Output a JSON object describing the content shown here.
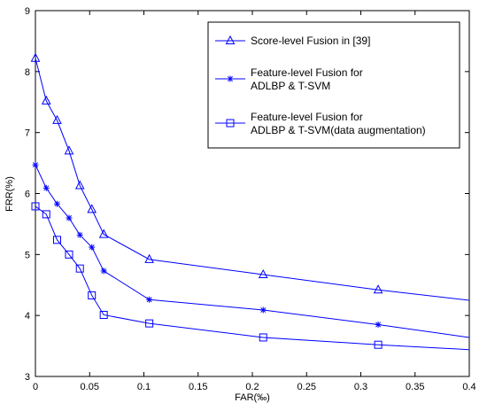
{
  "chart_data": {
    "type": "line",
    "xlabel": "FAR(‰)",
    "ylabel": "FRR(%)",
    "xlim": [
      0,
      0.4
    ],
    "ylim": [
      3,
      9
    ],
    "xticks": [
      "0",
      "0.05",
      "0.1",
      "0.15",
      "0.2",
      "0.25",
      "0.3",
      "0.35",
      "0.4"
    ],
    "yticks": [
      "3",
      "4",
      "5",
      "6",
      "7",
      "8",
      "9"
    ],
    "grid": false,
    "legend_position": "top-right",
    "line_color": "#0000ff",
    "series": [
      {
        "name": "Score-level Fusion in [39]",
        "label_lines": [
          "Score-level Fusion in [39]"
        ],
        "marker": "triangle",
        "x": [
          0,
          0.01,
          0.02,
          0.031,
          0.041,
          0.052,
          0.063,
          0.105,
          0.21,
          0.316,
          0.4
        ],
        "y": [
          8.22,
          7.52,
          7.2,
          6.7,
          6.13,
          5.74,
          5.33,
          4.92,
          4.67,
          4.42,
          4.25
        ]
      },
      {
        "name": "Feature-level Fusion for ADLBP & T-SVM",
        "label_lines": [
          "Feature-level Fusion for",
          "ADLBP & T-SVM"
        ],
        "marker": "star",
        "x": [
          0,
          0.01,
          0.02,
          0.031,
          0.041,
          0.052,
          0.063,
          0.105,
          0.21,
          0.316,
          0.4
        ],
        "y": [
          6.47,
          6.09,
          5.83,
          5.6,
          5.32,
          5.12,
          4.73,
          4.26,
          4.09,
          3.85,
          3.64
        ]
      },
      {
        "name": "Feature-level Fusion for ADLBP & T-SVM(data augmentation)",
        "label_lines": [
          "Feature-level Fusion for",
          "ADLBP & T-SVM(data augmentation)"
        ],
        "marker": "square",
        "x": [
          0,
          0.01,
          0.02,
          0.031,
          0.041,
          0.052,
          0.063,
          0.105,
          0.21,
          0.316,
          0.4
        ],
        "y": [
          5.79,
          5.66,
          5.24,
          5.0,
          4.77,
          4.33,
          4.01,
          3.87,
          3.64,
          3.52,
          3.44
        ]
      }
    ]
  }
}
